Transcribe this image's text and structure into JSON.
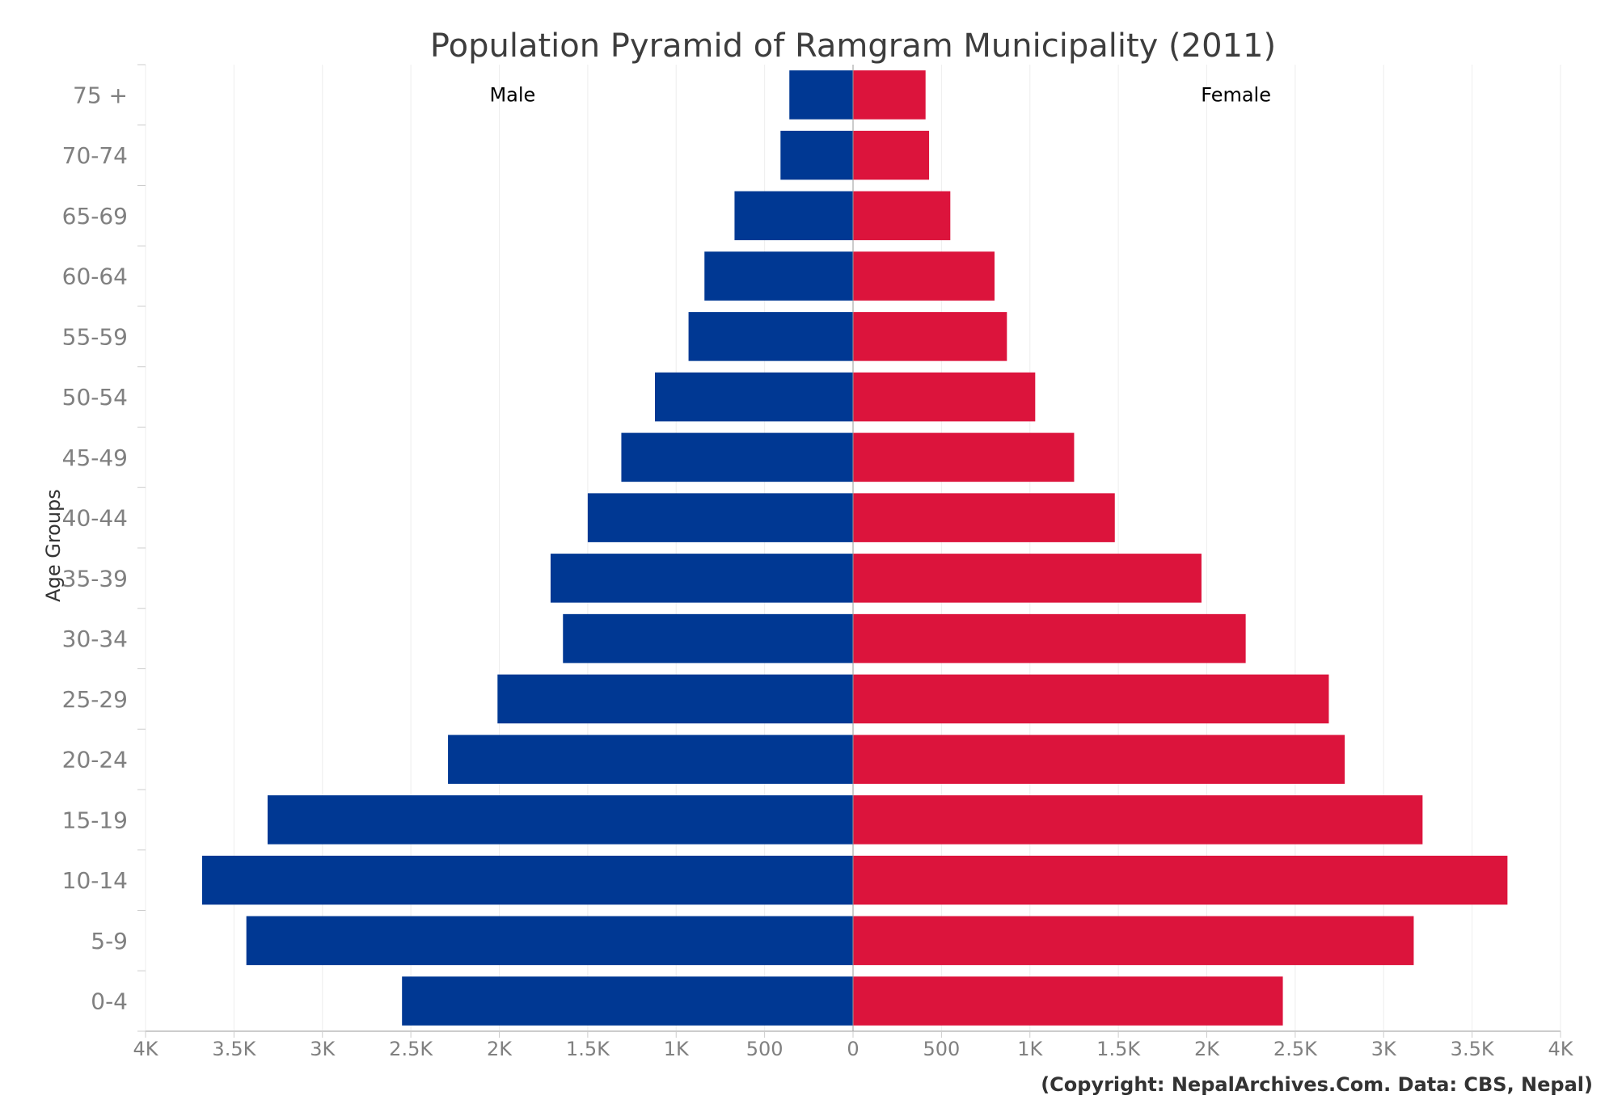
{
  "chart_data": {
    "type": "bar",
    "orientation": "horizontal",
    "layout": "population-pyramid",
    "title": "Population Pyramid of Ramgram Municipality (2011)",
    "ylabel": "Age Groups",
    "xlabel": "",
    "categories": [
      "75 +",
      "70-74",
      "65-69",
      "60-64",
      "55-59",
      "50-54",
      "45-49",
      "40-44",
      "35-39",
      "30-34",
      "25-29",
      "20-24",
      "15-19",
      "10-14",
      "5-9",
      "0-4"
    ],
    "series": [
      {
        "name": "Male",
        "color": "#003893",
        "values": [
          360,
          410,
          670,
          840,
          930,
          1120,
          1310,
          1500,
          1710,
          1640,
          2010,
          2290,
          3310,
          3680,
          3430,
          2550
        ]
      },
      {
        "name": "Female",
        "color": "#dc143c",
        "values": [
          410,
          430,
          550,
          800,
          870,
          1030,
          1250,
          1480,
          1970,
          2220,
          2690,
          2780,
          3220,
          3700,
          3170,
          2430
        ]
      }
    ],
    "xlim": [
      -4000,
      4000
    ],
    "xticks": [
      -4000,
      -3500,
      -3000,
      -2500,
      -2000,
      -1500,
      -1000,
      -500,
      0,
      500,
      1000,
      1500,
      2000,
      2500,
      3000,
      3500,
      4000
    ],
    "xtick_labels": [
      "4K",
      "3.5K",
      "3K",
      "2.5K",
      "2K",
      "1.5K",
      "1K",
      "500",
      "0",
      "500",
      "1K",
      "1.5K",
      "2K",
      "2.5K",
      "3K",
      "3.5K",
      "4K"
    ],
    "grid": "vertical",
    "legend": "none",
    "series_labels_position": "inside-top",
    "credit": "(Copyright: NepalArchives.Com. Data: CBS, Nepal)"
  }
}
